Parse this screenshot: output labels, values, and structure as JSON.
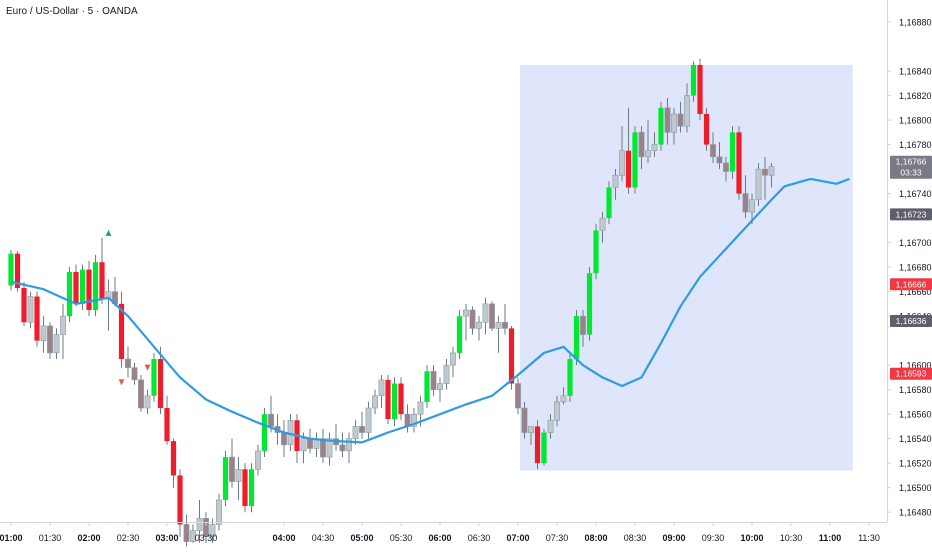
{
  "window": {
    "title": "Euro / US-Dollar · 5 · OANDA"
  },
  "colors": {
    "background": "#ffffff",
    "axis_border": "#d1d4dc",
    "text": "#131722",
    "ma_line": "#2f9be0",
    "bull_candle": "#00e832",
    "bear_candle": "#ef1c2b",
    "bull_light": "#bfc9cf",
    "bear_light": "#9b8189",
    "wick": "#6b7b86",
    "highlight_box": "#dfe6fb",
    "signal_up": "#26a65b",
    "signal_down": "#ef5350",
    "label_gray": "#787b86",
    "label_dark": "#5d606b",
    "label_red": "#ef3a45"
  },
  "chart_data": {
    "type": "candlestick",
    "symbol": "Euro / US-Dollar",
    "interval": "5",
    "source": "OANDA",
    "y_axis": {
      "ticks": [
        "1,16880",
        "1,16840",
        "1,16820",
        "1,16800",
        "1,16780",
        "1,16740",
        "1,16700",
        "1,16680",
        "1,16660",
        "1,16640",
        "1,16600",
        "1,16580",
        "1,16560",
        "1,16540",
        "1,16520",
        "1,16500",
        "1,16480"
      ],
      "tick_values": [
        1.1688,
        1.1684,
        1.1682,
        1.168,
        1.1678,
        1.1674,
        1.167,
        1.1668,
        1.1666,
        1.1664,
        1.166,
        1.1658,
        1.1656,
        1.1654,
        1.1652,
        1.165,
        1.1648
      ],
      "ylim": [
        1.16472,
        1.16898
      ]
    },
    "x_axis": {
      "ticks": [
        {
          "label": "01:00",
          "bold": true,
          "t": 0
        },
        {
          "label": "01:30",
          "bold": false,
          "t": 6
        },
        {
          "label": "02:00",
          "bold": true,
          "t": 12
        },
        {
          "label": "02:30",
          "bold": false,
          "t": 18
        },
        {
          "label": "03:00",
          "bold": true,
          "t": 24
        },
        {
          "label": "03:30",
          "bold": false,
          "t": 30
        },
        {
          "label": "04:00",
          "bold": true,
          "t": 42
        },
        {
          "label": "04:30",
          "bold": false,
          "t": 48
        },
        {
          "label": "05:00",
          "bold": true,
          "t": 54
        },
        {
          "label": "05:30",
          "bold": false,
          "t": 60
        },
        {
          "label": "06:00",
          "bold": true,
          "t": 66
        },
        {
          "label": "06:30",
          "bold": false,
          "t": 72
        },
        {
          "label": "07:00",
          "bold": true,
          "t": 78
        },
        {
          "label": "07:30",
          "bold": false,
          "t": 84
        },
        {
          "label": "08:00",
          "bold": true,
          "t": 90
        },
        {
          "label": "08:30",
          "bold": false,
          "t": 96
        },
        {
          "label": "09:00",
          "bold": true,
          "t": 102
        },
        {
          "label": "09:30",
          "bold": false,
          "t": 108
        },
        {
          "label": "10:00",
          "bold": true,
          "t": 114
        },
        {
          "label": "10:30",
          "bold": false,
          "t": 120
        },
        {
          "label": "11:00",
          "bold": true,
          "t": 126
        },
        {
          "label": "11:30",
          "bold": false,
          "t": 132
        }
      ]
    },
    "candles": [
      [
        1.16665,
        1.16694,
        1.16661,
        1.16691
      ],
      [
        1.16691,
        1.16693,
        1.1666,
        1.16663
      ],
      [
        1.16663,
        1.16668,
        1.16632,
        1.16635
      ],
      [
        1.16635,
        1.1666,
        1.1663,
        1.16656
      ],
      [
        1.16656,
        1.1666,
        1.16615,
        1.1662
      ],
      [
        1.1662,
        1.1664,
        1.1661,
        1.16632
      ],
      [
        1.16632,
        1.16635,
        1.16605,
        1.1661
      ],
      [
        1.1661,
        1.1663,
        1.16605,
        1.16625
      ],
      [
        1.16625,
        1.1665,
        1.16605,
        1.1664
      ],
      [
        1.1664,
        1.1668,
        1.16635,
        1.16676
      ],
      [
        1.16676,
        1.16682,
        1.16648,
        1.1665
      ],
      [
        1.1665,
        1.16682,
        1.16645,
        1.16678
      ],
      [
        1.16678,
        1.16685,
        1.1664,
        1.16645
      ],
      [
        1.16645,
        1.1669,
        1.1664,
        1.16684
      ],
      [
        1.16684,
        1.16704,
        1.1665,
        1.16654
      ],
      [
        1.16654,
        1.1667,
        1.16628,
        1.1666
      ],
      [
        1.1666,
        1.16672,
        1.16648,
        1.1665
      ],
      [
        1.1665,
        1.1666,
        1.16598,
        1.16605
      ],
      [
        1.16605,
        1.16615,
        1.1659,
        1.16598
      ],
      [
        1.16598,
        1.16602,
        1.16584,
        1.16588
      ],
      [
        1.16588,
        1.16592,
        1.16562,
        1.16565
      ],
      [
        1.16565,
        1.1658,
        1.1656,
        1.16575
      ],
      [
        1.16575,
        1.1661,
        1.1657,
        1.16605
      ],
      [
        1.16605,
        1.16615,
        1.1656,
        1.16565
      ],
      [
        1.16565,
        1.16575,
        1.16535,
        1.16538
      ],
      [
        1.16538,
        1.1654,
        1.165,
        1.1651
      ],
      [
        1.1651,
        1.16515,
        1.1646,
        1.1647
      ],
      [
        1.1647,
        1.16478,
        1.16452,
        1.16456
      ],
      [
        1.16456,
        1.1647,
        1.16455,
        1.16465
      ],
      [
        1.16465,
        1.1649,
        1.16455,
        1.16475
      ],
      [
        1.16475,
        1.1648,
        1.16455,
        1.1646
      ],
      [
        1.1646,
        1.16475,
        1.16455,
        1.1647
      ],
      [
        1.1647,
        1.16495,
        1.16465,
        1.1649
      ],
      [
        1.1649,
        1.1653,
        1.16485,
        1.16525
      ],
      [
        1.16525,
        1.1654,
        1.165,
        1.16505
      ],
      [
        1.16505,
        1.16525,
        1.1649,
        1.16515
      ],
      [
        1.16515,
        1.1652,
        1.1648,
        1.16485
      ],
      [
        1.16485,
        1.1652,
        1.1648,
        1.16515
      ],
      [
        1.16515,
        1.16535,
        1.1651,
        1.1653
      ],
      [
        1.1653,
        1.16565,
        1.16525,
        1.1656
      ],
      [
        1.1656,
        1.16575,
        1.16545,
        1.1655
      ],
      [
        1.1655,
        1.1656,
        1.16535,
        1.16545
      ],
      [
        1.16545,
        1.16555,
        1.16525,
        1.16535
      ],
      [
        1.16535,
        1.1656,
        1.1653,
        1.16555
      ],
      [
        1.16555,
        1.1656,
        1.1652,
        1.1653
      ],
      [
        1.1653,
        1.16545,
        1.1652,
        1.1654
      ],
      [
        1.1654,
        1.16548,
        1.16528,
        1.16532
      ],
      [
        1.16532,
        1.16545,
        1.16525,
        1.1654
      ],
      [
        1.1654,
        1.16548,
        1.1652,
        1.16525
      ],
      [
        1.16525,
        1.16545,
        1.16518,
        1.1654
      ],
      [
        1.1654,
        1.16552,
        1.1653,
        1.16535
      ],
      [
        1.16535,
        1.16545,
        1.16525,
        1.1653
      ],
      [
        1.1653,
        1.16545,
        1.1652,
        1.1654
      ],
      [
        1.1654,
        1.16555,
        1.16535,
        1.1655
      ],
      [
        1.1655,
        1.16562,
        1.1654,
        1.16545
      ],
      [
        1.16545,
        1.1657,
        1.1654,
        1.16565
      ],
      [
        1.16565,
        1.1658,
        1.1656,
        1.16575
      ],
      [
        1.16575,
        1.16592,
        1.16565,
        1.16588
      ],
      [
        1.16588,
        1.16592,
        1.16552,
        1.16556
      ],
      [
        1.16556,
        1.1659,
        1.1655,
        1.16585
      ],
      [
        1.16585,
        1.1659,
        1.16555,
        1.1656
      ],
      [
        1.1656,
        1.16568,
        1.16545,
        1.1655
      ],
      [
        1.1655,
        1.16565,
        1.16545,
        1.1656
      ],
      [
        1.1656,
        1.16575,
        1.1655,
        1.1657
      ],
      [
        1.1657,
        1.166,
        1.16565,
        1.16595
      ],
      [
        1.16595,
        1.166,
        1.16575,
        1.1658
      ],
      [
        1.1658,
        1.1659,
        1.1657,
        1.16585
      ],
      [
        1.16585,
        1.16605,
        1.1658,
        1.166
      ],
      [
        1.166,
        1.16615,
        1.1659,
        1.1661
      ],
      [
        1.1661,
        1.16645,
        1.16605,
        1.1664
      ],
      [
        1.1664,
        1.1665,
        1.1662,
        1.16645
      ],
      [
        1.16645,
        1.16648,
        1.16625,
        1.1663
      ],
      [
        1.1663,
        1.1664,
        1.1662,
        1.16635
      ],
      [
        1.16635,
        1.16655,
        1.16625,
        1.1665
      ],
      [
        1.1665,
        1.16652,
        1.16628,
        1.1663
      ],
      [
        1.1663,
        1.1664,
        1.1661,
        1.16635
      ],
      [
        1.16635,
        1.1665,
        1.16625,
        1.1663
      ],
      [
        1.1663,
        1.16632,
        1.1658,
        1.16585
      ],
      [
        1.16585,
        1.1659,
        1.1656,
        1.16565
      ],
      [
        1.16565,
        1.1657,
        1.1654,
        1.16545
      ],
      [
        1.16545,
        1.1655,
        1.16535,
        1.1655
      ],
      [
        1.1655,
        1.16555,
        1.16515,
        1.1652
      ],
      [
        1.1652,
        1.16548,
        1.16518,
        1.16545
      ],
      [
        1.16545,
        1.1656,
        1.1654,
        1.16555
      ],
      [
        1.16555,
        1.16575,
        1.1655,
        1.1657
      ],
      [
        1.1657,
        1.16582,
        1.16568,
        1.16575
      ],
      [
        1.16575,
        1.1661,
        1.1657,
        1.16605
      ],
      [
        1.16605,
        1.16645,
        1.166,
        1.1664
      ],
      [
        1.1664,
        1.16645,
        1.16615,
        1.16625
      ],
      [
        1.16625,
        1.1668,
        1.1662,
        1.16675
      ],
      [
        1.16675,
        1.16715,
        1.1667,
        1.1671
      ],
      [
        1.1671,
        1.16725,
        1.167,
        1.1672
      ],
      [
        1.1672,
        1.1675,
        1.16715,
        1.16745
      ],
      [
        1.16745,
        1.1676,
        1.16735,
        1.16755
      ],
      [
        1.16755,
        1.16795,
        1.1675,
        1.16775
      ],
      [
        1.16775,
        1.1681,
        1.1674,
        1.16745
      ],
      [
        1.16745,
        1.16795,
        1.1674,
        1.1679
      ],
      [
        1.1679,
        1.16795,
        1.1676,
        1.1677
      ],
      [
        1.1677,
        1.168,
        1.16765,
        1.16775
      ],
      [
        1.16775,
        1.1679,
        1.1677,
        1.1678
      ],
      [
        1.1678,
        1.16815,
        1.16775,
        1.1681
      ],
      [
        1.1681,
        1.16818,
        1.1678,
        1.1679
      ],
      [
        1.1679,
        1.1681,
        1.1678,
        1.16805
      ],
      [
        1.16805,
        1.16815,
        1.1679,
        1.16795
      ],
      [
        1.16795,
        1.1683,
        1.1679,
        1.1682
      ],
      [
        1.1682,
        1.16848,
        1.16815,
        1.16845
      ],
      [
        1.16845,
        1.1685,
        1.168,
        1.16805
      ],
      [
        1.16805,
        1.1681,
        1.16775,
        1.1678
      ],
      [
        1.1678,
        1.1679,
        1.16765,
        1.1677
      ],
      [
        1.1677,
        1.16782,
        1.1676,
        1.16765
      ],
      [
        1.16765,
        1.1677,
        1.1675,
        1.16758
      ],
      [
        1.16758,
        1.16795,
        1.16752,
        1.1679
      ],
      [
        1.1679,
        1.16795,
        1.16735,
        1.1674
      ],
      [
        1.1674,
        1.16755,
        1.1672,
        1.16725
      ],
      [
        1.16725,
        1.1674,
        1.16715,
        1.16735
      ],
      [
        1.16735,
        1.16765,
        1.1673,
        1.1676
      ],
      [
        1.1676,
        1.1677,
        1.16735,
        1.16755
      ],
      [
        1.16755,
        1.16765,
        1.16745,
        1.16762
      ]
    ],
    "moving_average": {
      "color": "#2f9be0",
      "points": [
        [
          0,
          1.16668
        ],
        [
          5,
          1.16662
        ],
        [
          10,
          1.1665
        ],
        [
          15,
          1.16655
        ],
        [
          18,
          1.1664
        ],
        [
          22,
          1.16615
        ],
        [
          26,
          1.1659
        ],
        [
          30,
          1.16572
        ],
        [
          34,
          1.16562
        ],
        [
          38,
          1.16553
        ],
        [
          42,
          1.16545
        ],
        [
          46,
          1.1654
        ],
        [
          50,
          1.16538
        ],
        [
          54,
          1.16537
        ],
        [
          58,
          1.16545
        ],
        [
          62,
          1.16552
        ],
        [
          66,
          1.1656
        ],
        [
          70,
          1.16568
        ],
        [
          74,
          1.16575
        ],
        [
          78,
          1.16592
        ],
        [
          82,
          1.1661
        ],
        [
          85,
          1.16615
        ],
        [
          88,
          1.166
        ],
        [
          91,
          1.1659
        ],
        [
          94,
          1.16583
        ],
        [
          97,
          1.1659
        ],
        [
          100,
          1.16618
        ],
        [
          103,
          1.16648
        ],
        [
          106,
          1.16672
        ],
        [
          110,
          1.16695
        ],
        [
          114,
          1.16718
        ],
        [
          117,
          1.16735
        ],
        [
          119,
          1.16746
        ],
        [
          123,
          1.16752
        ],
        [
          127,
          1.16748
        ],
        [
          129,
          1.16752
        ]
      ]
    },
    "highlight_region": {
      "t_start": 78.3,
      "t_end": 129.5,
      "price_low": 1.16514,
      "price_high": 1.16845
    },
    "signals": [
      {
        "type": "up",
        "t": 15,
        "price": 1.16708
      },
      {
        "type": "down",
        "t": 17,
        "price": 1.16586
      },
      {
        "type": "down",
        "t": 21,
        "price": 1.16598
      }
    ],
    "price_labels": [
      {
        "text": "1,16766",
        "sub": "03:33",
        "price": 1.16766,
        "style": "gray"
      },
      {
        "text": "1,16723",
        "sub": "",
        "price": 1.16723,
        "style": "dark"
      },
      {
        "text": "1,16666",
        "sub": "",
        "price": 1.16666,
        "style": "red"
      },
      {
        "text": "1,16636",
        "sub": "",
        "price": 1.16636,
        "style": "dark"
      },
      {
        "text": "1,16593",
        "sub": "",
        "price": 1.16593,
        "style": "red"
      }
    ]
  }
}
